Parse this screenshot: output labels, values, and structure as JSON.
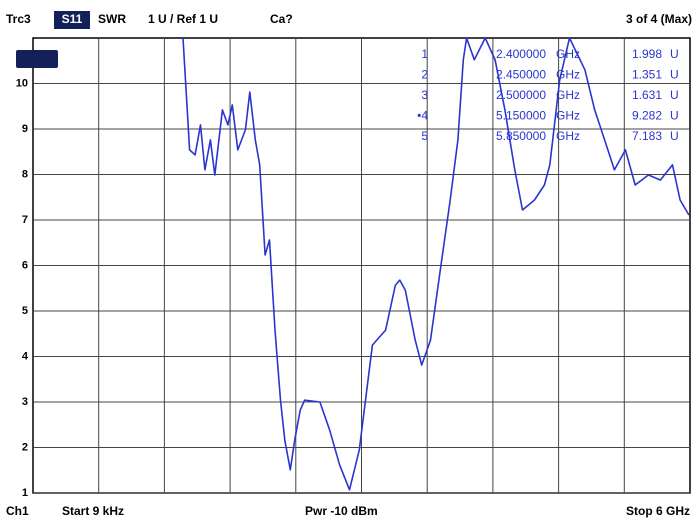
{
  "chart_data": {
    "type": "line",
    "header": {
      "trace": "Trc3",
      "parameter": "S11",
      "format": "SWR",
      "scale": "1 U / Ref 1 U",
      "cal": "Ca?",
      "status": "3 of 4 (Max)"
    },
    "footer": {
      "channel": "Ch1",
      "start": "Start  9 kHz",
      "power": "Pwr  -10 dBm",
      "stop": "Stop  6 GHz"
    },
    "markers": [
      {
        "label": "1",
        "frequency": "2.400000",
        "freq_unit": "GHz",
        "value": "1.998",
        "value_unit": "U"
      },
      {
        "label": "2",
        "frequency": "2.450000",
        "freq_unit": "GHz",
        "value": "1.351",
        "value_unit": "U"
      },
      {
        "label": "3",
        "frequency": "2.500000",
        "freq_unit": "GHz",
        "value": "1.631",
        "value_unit": "U"
      },
      {
        "label": "•4",
        "frequency": "5.150000",
        "freq_unit": "GHz",
        "value": "9.282",
        "value_unit": "U"
      },
      {
        "label": "5",
        "frequency": "5.850000",
        "freq_unit": "GHz",
        "value": "7.183",
        "value_unit": "U"
      }
    ],
    "x": [
      1.37,
      1.43,
      1.48,
      1.53,
      1.57,
      1.62,
      1.66,
      1.73,
      1.78,
      1.82,
      1.87,
      1.94,
      1.98,
      2.03,
      2.07,
      2.12,
      2.16,
      2.21,
      2.26,
      2.3,
      2.35,
      2.39,
      2.44,
      2.48,
      2.62,
      2.71,
      2.8,
      2.89,
      2.98,
      3.1,
      3.22,
      3.31,
      3.35,
      3.4,
      3.49,
      3.55,
      3.63,
      3.72,
      3.81,
      3.88,
      3.93,
      3.96,
      4.03,
      4.13,
      4.22,
      4.31,
      4.4,
      4.47,
      4.58,
      4.67,
      4.72,
      4.81,
      4.9,
      5.04,
      5.13,
      5.22,
      5.31,
      5.41,
      5.5,
      5.62,
      5.73,
      5.84,
      5.91,
      5.99
    ],
    "series": [
      {
        "name": "Trc3",
        "color": "#2a35d0",
        "values": [
          11,
          8.54,
          8.43,
          9.09,
          8.1,
          8.76,
          7.99,
          9.42,
          9.09,
          9.53,
          8.54,
          8.98,
          9.81,
          8.76,
          8.21,
          6.23,
          6.56,
          4.58,
          3.04,
          2.16,
          1.51,
          2.16,
          2.82,
          3.04,
          3.0,
          2.38,
          1.62,
          1.07,
          1.95,
          4.25,
          4.58,
          5.57,
          5.68,
          5.46,
          4.36,
          3.81,
          4.36,
          5.9,
          7.44,
          8.76,
          10.52,
          11,
          10.52,
          11,
          10.52,
          9.42,
          8.1,
          7.22,
          7.44,
          7.77,
          8.21,
          10.08,
          11,
          10.3,
          9.42,
          8.76,
          8.1,
          8.54,
          7.77,
          7.99,
          7.88,
          8.21,
          7.44,
          7.11
        ]
      }
    ],
    "xlim": [
      9e-06,
      6
    ],
    "ylim": [
      1,
      11
    ],
    "yticks": [
      1,
      2,
      3,
      4,
      5,
      6,
      7,
      8,
      9,
      10
    ],
    "grid": true
  }
}
